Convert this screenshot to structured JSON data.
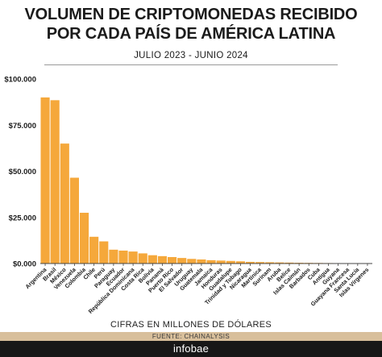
{
  "header": {
    "title_line1": "VOLUMEN DE CRIPTOMONEDAS RECIBIDO",
    "title_line2": "POR CADA PAÍS DE AMÉRICA LATINA",
    "subtitle": "JULIO 2023 - JUNIO 2024"
  },
  "footer": {
    "note": "CIFRAS EN MILLONES DE DÓLARES",
    "source": "FUENTE: CHAINALYSIS",
    "brand": "infobae"
  },
  "colors": {
    "bar": "#f5a83b",
    "axis": "#444444",
    "source_bar": "#d8bf9b",
    "brand_bar": "#171717"
  },
  "chart_data": {
    "type": "bar",
    "title": "VOLUMEN DE CRIPTOMONEDAS RECIBIDO POR CADA PAÍS DE AMÉRICA LATINA",
    "subtitle": "JULIO 2023 - JUNIO 2024",
    "xlabel": "",
    "ylabel": "",
    "ylim": [
      0,
      100000
    ],
    "yticks": [
      0,
      25000,
      50000,
      75000,
      100000
    ],
    "ytick_labels": [
      "$0.000",
      "$25.000",
      "$50.000",
      "$75.000",
      "$100.000"
    ],
    "grid": false,
    "categories": [
      "Argentina",
      "Brasil",
      "México",
      "Venezuela",
      "Colombia",
      "Chile",
      "Perú",
      "Paraguay",
      "Ecuador",
      "República Dominicana",
      "Costa Rica",
      "Bolivia",
      "Panamá",
      "Puerto Rico",
      "El Salvador",
      "Uruguay",
      "Guatemala",
      "Jamaica",
      "Honduras",
      "Guadalupe",
      "Trinidad y Tobago",
      "Nicaragua",
      "Martinica",
      "Surinam",
      "Aruba",
      "Belice",
      "Islas Caimán",
      "Barbados",
      "Cuba",
      "Antigua",
      "Guyana",
      "Guayana Francesa",
      "Santa Lucía",
      "Islas Vírgenes"
    ],
    "values": [
      90000,
      88500,
      65000,
      46500,
      27500,
      14500,
      12000,
      7500,
      7000,
      6500,
      5500,
      4500,
      4000,
      3500,
      3000,
      2500,
      2200,
      1800,
      1600,
      1400,
      1200,
      900,
      800,
      700,
      600,
      500,
      400,
      350,
      300,
      250,
      200,
      150,
      120,
      100
    ]
  }
}
